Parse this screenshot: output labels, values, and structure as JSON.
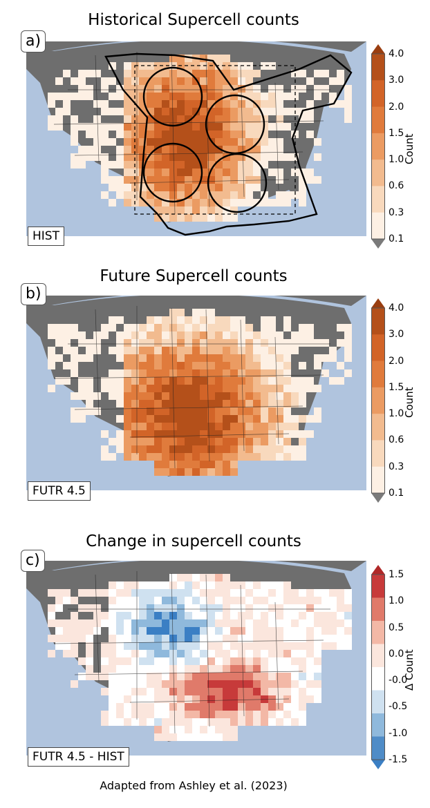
{
  "panels": [
    {
      "title": "Historical Supercell counts",
      "letter": "a)",
      "label": "HIST",
      "colorbar": {
        "label": "Count",
        "ticks": [
          "4.0",
          "3.0",
          "2.0",
          "1.5",
          "1.0",
          "0.6",
          "0.3",
          "0.1"
        ],
        "colors": [
          "#b4501a",
          "#d26428",
          "#e07b3c",
          "#eb9b62",
          "#f2bb8f",
          "#f8d9bd",
          "#fdf0e4"
        ],
        "extend_top": "#9a3e10",
        "extend_bottom": "#7a7a7a"
      },
      "overlays": [
        "circles",
        "dashed-box",
        "region-outline"
      ]
    },
    {
      "title": "Future Supercell counts",
      "letter": "b)",
      "label": "FUTR 4.5",
      "colorbar": {
        "label": "Count",
        "ticks": [
          "4.0",
          "3.0",
          "2.0",
          "1.5",
          "1.0",
          "0.6",
          "0.3",
          "0.1"
        ],
        "colors": [
          "#b4501a",
          "#d26428",
          "#e07b3c",
          "#eb9b62",
          "#f2bb8f",
          "#f8d9bd",
          "#fdf0e4"
        ],
        "extend_top": "#9a3e10",
        "extend_bottom": "#7a7a7a"
      }
    },
    {
      "title": "Change in supercell counts",
      "letter": "c)",
      "label": "FUTR 4.5 - HIST",
      "colorbar": {
        "label": "Δ Count",
        "ticks": [
          "1.5",
          "1.0",
          "0.5",
          "0.0",
          "-0.0",
          "-0.5",
          "-1.0",
          "-1.5"
        ],
        "colors": [
          "#c73a3a",
          "#e07a6a",
          "#f3b8a6",
          "#fbe6dd",
          "#ffffff",
          "#cfe1f0",
          "#8fb9dc",
          "#4f8cc7"
        ],
        "extend_top": "#b02828",
        "extend_bottom": "#3b7fc4"
      }
    }
  ],
  "credit": "Adapted from Ashley et al. (2023)"
}
